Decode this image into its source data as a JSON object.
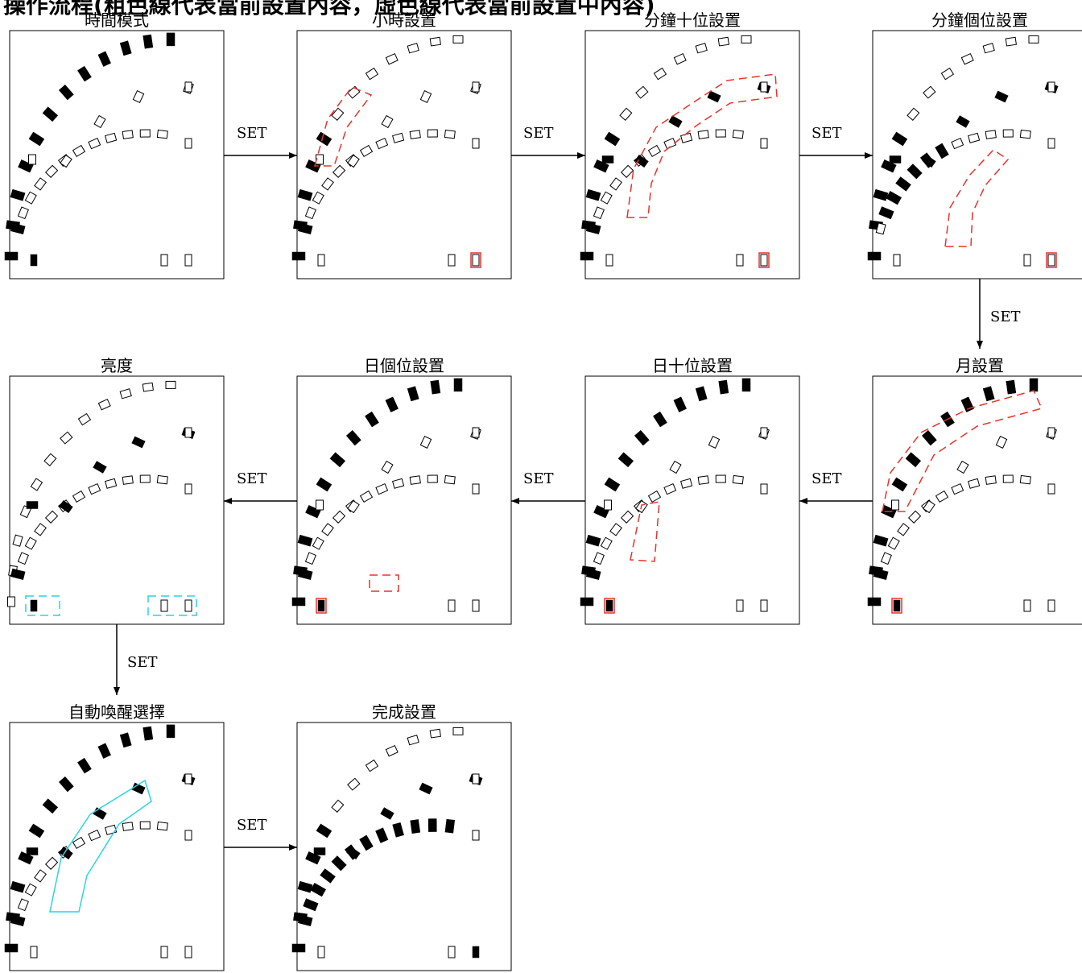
{
  "header": {
    "title": "操作流程(粗色線代表當前設置內容，虛色線代表當前設置中內容)"
  },
  "set_label": "SET",
  "colors": {
    "frame": "#000000",
    "segment_on": "#000000",
    "setting_highlight": "#e8332c",
    "brightness_highlight": "#29d4e4"
  },
  "panels": [
    {
      "id": "time-mode",
      "title": "時間模式",
      "on": [
        "outerAll",
        "innerL3",
        "secL"
      ],
      "hl": []
    },
    {
      "id": "hour-setting",
      "title": "小時設置",
      "on": [
        "outerL5",
        "innerL1"
      ],
      "hl": [
        {
          "type": "outerLow",
          "color": "red"
        },
        {
          "type": "secR",
          "color": "red"
        }
      ]
    },
    {
      "id": "minute-tens-setting",
      "title": "分鐘十位設置",
      "on": [
        "outerL5",
        "innerL1",
        "spoke"
      ],
      "hl": [
        {
          "type": "spoke",
          "color": "red"
        },
        {
          "type": "secR",
          "color": "red"
        }
      ]
    },
    {
      "id": "minute-units-setting",
      "title": "分鐘個位設置",
      "on": [
        "outerL5",
        "spoke",
        "innerPart"
      ],
      "hl": [
        {
          "type": "innerArc",
          "color": "red"
        },
        {
          "type": "secR",
          "color": "red"
        }
      ]
    },
    {
      "id": "brightness",
      "title": "亮度",
      "on": [
        "outerNone",
        "spoke",
        "innerL2",
        "secL"
      ],
      "hl": [
        {
          "type": "bottomL",
          "color": "cyan"
        },
        {
          "type": "bottomR",
          "color": "cyan"
        }
      ]
    },
    {
      "id": "day-units-setting",
      "title": "日個位設置",
      "on": [
        "outerAll",
        "innerL1",
        "secL"
      ],
      "hl": [
        {
          "type": "innerEnd",
          "color": "red"
        },
        {
          "type": "dot",
          "color": "red"
        }
      ]
    },
    {
      "id": "day-tens-setting",
      "title": "日十位設置",
      "on": [
        "outerAll",
        "innerL2",
        "secL"
      ],
      "hl": [
        {
          "type": "miniSpoke",
          "color": "red"
        },
        {
          "type": "dot",
          "color": "red"
        }
      ]
    },
    {
      "id": "month-setting",
      "title": "月設置",
      "on": [
        "outerAll",
        "innerL1",
        "secL"
      ],
      "hl": [
        {
          "type": "outerArc",
          "color": "red"
        },
        {
          "type": "dot",
          "color": "red"
        }
      ]
    },
    {
      "id": "auto-wake-selection",
      "title": "自動喚醒選擇",
      "on": [
        "outerAll",
        "spoke",
        "innerL1"
      ],
      "hl": [
        {
          "type": "bigSpoke",
          "color": "cyan"
        }
      ]
    },
    {
      "id": "setting-complete",
      "title": "完成設置",
      "on": [
        "outerL5",
        "spoke",
        "innerAll",
        "secR"
      ],
      "hl": []
    }
  ]
}
